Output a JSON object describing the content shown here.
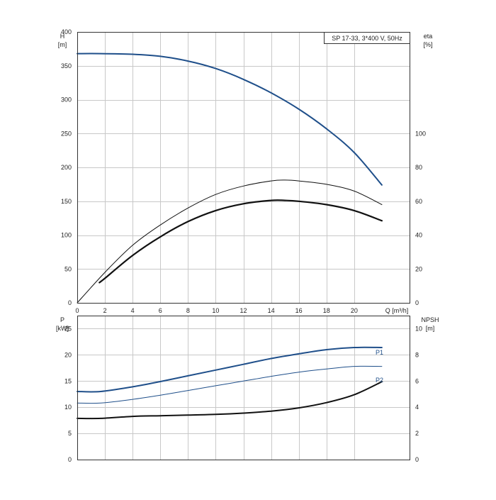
{
  "chart_data": [
    {
      "type": "line",
      "title": "SP 17-33, 3*400 V, 50Hz",
      "xlabel": "Q [m³/h]",
      "ylabel": "H",
      "ylabel_unit": "[m]",
      "y2label": "eta",
      "y2label_unit": "[%]",
      "xlim": [
        0,
        24
      ],
      "ylim": [
        0,
        400
      ],
      "y2lim": [
        0,
        160
      ],
      "x_ticks": [
        "0",
        "2",
        "4",
        "6",
        "8",
        "10",
        "12",
        "14",
        "16",
        "18",
        "20"
      ],
      "y_ticks": [
        "0",
        "50",
        "100",
        "150",
        "200",
        "250",
        "300",
        "350",
        "400"
      ],
      "y2_ticks": [
        "0",
        "20",
        "40",
        "60",
        "80",
        "100"
      ],
      "grid": true,
      "series": [
        {
          "axis": "left",
          "color": "#1f4f8a",
          "width": 2,
          "x": [
            0,
            1.7,
            4,
            6,
            8,
            10,
            12,
            14,
            16,
            18,
            20,
            22
          ],
          "values": [
            368,
            368,
            367,
            364,
            357,
            346,
            330,
            310,
            286,
            257,
            222,
            174
          ]
        },
        {
          "axis": "right",
          "color": "#111111",
          "width": 1,
          "x": [
            0,
            2,
            4,
            6,
            8,
            10,
            12,
            14,
            15,
            16,
            18,
            20,
            22
          ],
          "values": [
            0,
            18,
            34,
            46,
            56,
            64,
            69,
            72,
            72.5,
            72,
            70,
            66,
            58
          ]
        },
        {
          "axis": "right",
          "color": "#111111",
          "width": 2.2,
          "x": [
            1.6,
            2,
            4,
            6,
            8,
            10,
            12,
            14,
            15,
            16,
            18,
            20,
            22
          ],
          "values": [
            12,
            14.5,
            28,
            39,
            48,
            54.5,
            58.5,
            60.5,
            60.5,
            60,
            58,
            54.5,
            48.5
          ]
        }
      ]
    },
    {
      "type": "line",
      "xlabel": "",
      "ylabel": "P",
      "ylabel_unit": "[kW]",
      "y2label": "NPSH",
      "y2label_unit": "[m]",
      "xlim": [
        0,
        24
      ],
      "ylim": [
        0,
        27.5
      ],
      "y2lim": [
        0,
        11
      ],
      "y_ticks": [
        "0",
        "5",
        "10",
        "15",
        "20",
        "25"
      ],
      "y2_ticks": [
        "0",
        "2",
        "4",
        "6",
        "8",
        "10"
      ],
      "grid": true,
      "series": [
        {
          "name": "P1",
          "axis": "left",
          "color": "#1f4f8a",
          "width": 2,
          "x": [
            0,
            1.7,
            4,
            6,
            8,
            10,
            12,
            14,
            16,
            18,
            20,
            22
          ],
          "values": [
            13,
            13,
            13.9,
            14.9,
            16,
            17.1,
            18.2,
            19.3,
            20.2,
            21,
            21.4,
            21.4
          ]
        },
        {
          "name": "P2",
          "axis": "left",
          "color": "#1f4f8a",
          "width": 1,
          "x": [
            0,
            1.7,
            4,
            6,
            8,
            10,
            12,
            14,
            16,
            18,
            20,
            22
          ],
          "values": [
            10.8,
            10.8,
            11.5,
            12.3,
            13.2,
            14.1,
            15,
            15.9,
            16.7,
            17.3,
            17.8,
            17.8
          ]
        },
        {
          "axis": "right",
          "color": "#111111",
          "width": 2,
          "x": [
            0,
            1.7,
            4,
            6,
            8,
            10,
            12,
            14,
            16,
            18,
            20,
            22
          ],
          "values": [
            3.15,
            3.15,
            3.3,
            3.35,
            3.4,
            3.45,
            3.55,
            3.7,
            3.95,
            4.35,
            4.95,
            5.95
          ]
        }
      ]
    }
  ]
}
